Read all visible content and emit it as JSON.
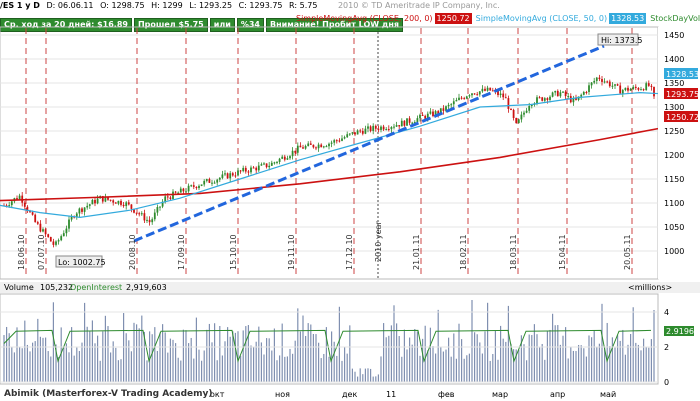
{
  "header": {
    "symbol": "/ES 1 y D",
    "date": "D: 06.06.11",
    "open": "O: 1298.75",
    "high": "H: 1299",
    "low": "L: 1293.25",
    "close": "C: 1293.75",
    "range": "R: 5.75",
    "watermark": "2010 © TD Ameritrade IP Company, Inc."
  },
  "alerts": [
    "Ср. ход за 20 дней: $16.89",
    "Прошел $5.75",
    "или",
    "%34",
    "Внимание! Пробит LOW дня"
  ],
  "studies": [
    {
      "label": "SimpleMovingAvg (CLOSE, 200, 0)",
      "value": "1250.72",
      "color": "#cc1111"
    },
    {
      "label": "SimpleMovingAvg (CLOSE, 50, 0)",
      "value": "1328.53",
      "color": "#33aadd"
    },
    {
      "label": "StockDayVol (2",
      "value": "",
      "color": "#2e8b2e"
    }
  ],
  "price_chart": {
    "hi_label": "Hi: 1373.5",
    "lo_label": "Lo: 1002.75",
    "year_label": "2010 year",
    "last_price": "1293.75",
    "sma50_value": "1328.53",
    "sma200_value": "1250.72",
    "y_ticks": [
      "1450",
      "1400",
      "1350",
      "1300",
      "1250",
      "1200",
      "1150",
      "1100",
      "1050",
      "1000"
    ],
    "date_labels": [
      "18.06.10",
      "07.07.10",
      "20.08.10",
      "17.09.10",
      "15.10.10",
      "19.11.10",
      "17.12.10",
      "21.01.11",
      "18.02.11",
      "18.03.11",
      "15.04.11",
      "20.05.11"
    ]
  },
  "volume_panel": {
    "volume_label": "Volume",
    "volume_value": "105,232",
    "oi_label": "OpenInterest",
    "oi_value": "2,919,603",
    "units": "<millions>",
    "y_ticks": [
      "4",
      "2",
      "0"
    ],
    "last_oi": "2.9196"
  },
  "x_axis": {
    "months": [
      "окт",
      "ноя",
      "дек",
      "11",
      "фев",
      "мар",
      "апр",
      "май"
    ]
  },
  "watermark_author": "Abimik (Masterforex-V Trading Academy)",
  "colors": {
    "candle_up": "#2e8b2e",
    "candle_down": "#cc1111",
    "sma200": "#cc1111",
    "sma50": "#33aadd",
    "trendline": "#2266dd",
    "grid_dashed": "#cc4444"
  }
}
